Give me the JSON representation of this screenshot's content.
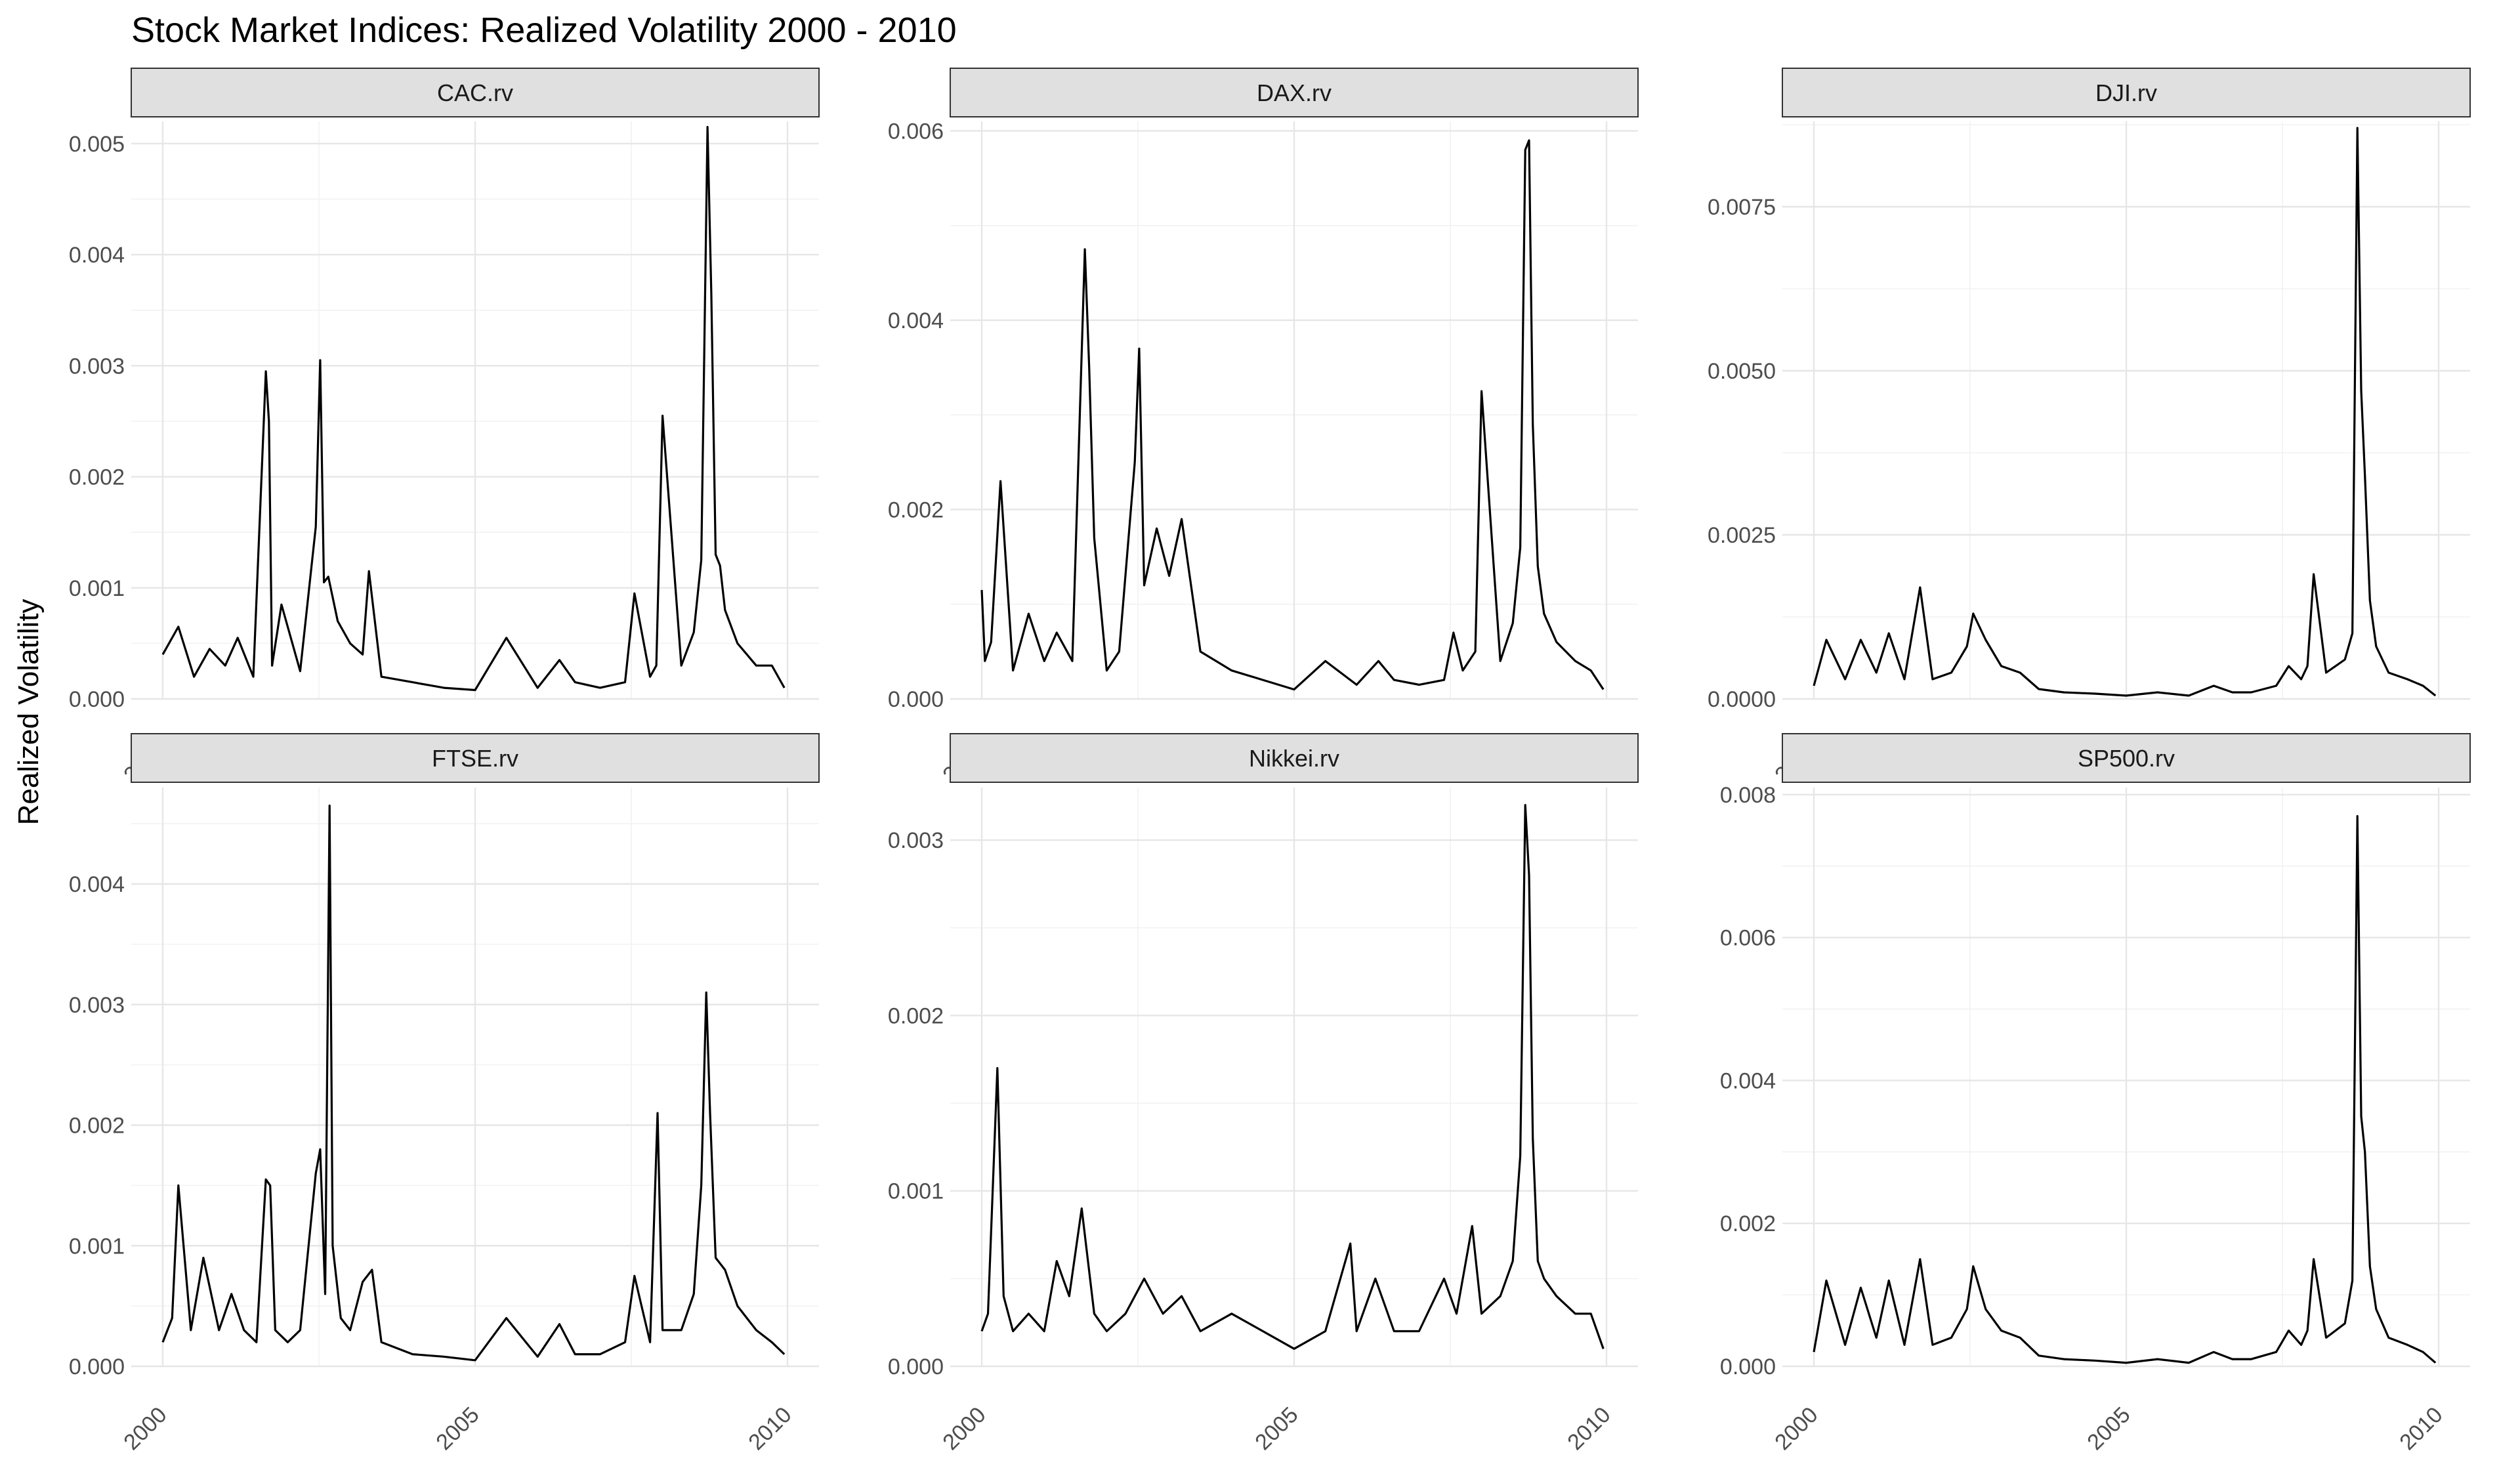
{
  "chart_data": {
    "type": "line",
    "title": "Stock Market Indices: Realized Volatility 2000 - 2010",
    "ylabel": "Realized Volatility",
    "xlabel": "",
    "grid": true,
    "x_range": [
      2000,
      2010
    ],
    "x_ticks": [
      "2000",
      "2005",
      "2010"
    ],
    "panels": [
      {
        "name": "CAC.rv",
        "ylim": [
          0,
          0.0052
        ],
        "y_ticks": [
          "0.000",
          "0.001",
          "0.002",
          "0.003",
          "0.004",
          "0.005"
        ],
        "x": [
          2000.0,
          2000.25,
          2000.5,
          2000.75,
          2001.0,
          2001.2,
          2001.45,
          2001.65,
          2001.7,
          2001.75,
          2001.9,
          2002.2,
          2002.45,
          2002.52,
          2002.58,
          2002.65,
          2002.8,
          2003.0,
          2003.2,
          2003.3,
          2003.5,
          2004.0,
          2004.5,
          2005.0,
          2005.5,
          2006.0,
          2006.35,
          2006.6,
          2007.0,
          2007.4,
          2007.55,
          2007.8,
          2007.9,
          2008.0,
          2008.3,
          2008.5,
          2008.62,
          2008.72,
          2008.78,
          2008.85,
          2008.92,
          2009.0,
          2009.2,
          2009.5,
          2009.75,
          2009.95
        ],
        "y": [
          0.0004,
          0.00065,
          0.0002,
          0.00045,
          0.0003,
          0.00055,
          0.0002,
          0.00295,
          0.0025,
          0.0003,
          0.00085,
          0.00025,
          0.00155,
          0.00305,
          0.00105,
          0.0011,
          0.0007,
          0.0005,
          0.0004,
          0.00115,
          0.0002,
          0.00015,
          0.0001,
          8e-05,
          0.00055,
          0.0001,
          0.00035,
          0.00015,
          0.0001,
          0.00015,
          0.00095,
          0.0002,
          0.0003,
          0.00255,
          0.0003,
          0.0006,
          0.00125,
          0.00515,
          0.00365,
          0.0013,
          0.0012,
          0.0008,
          0.0005,
          0.0003,
          0.0003,
          0.0001
        ]
      },
      {
        "name": "DAX.rv",
        "ylim": [
          0,
          0.0061
        ],
        "y_ticks": [
          "0.000",
          "0.002",
          "0.004",
          "0.006"
        ],
        "x": [
          2000.0,
          2000.05,
          2000.15,
          2000.3,
          2000.5,
          2000.75,
          2001.0,
          2001.2,
          2001.45,
          2001.65,
          2001.72,
          2001.8,
          2002.0,
          2002.2,
          2002.45,
          2002.52,
          2002.6,
          2002.8,
          2003.0,
          2003.2,
          2003.5,
          2004.0,
          2004.5,
          2005.0,
          2005.5,
          2006.0,
          2006.35,
          2006.6,
          2007.0,
          2007.4,
          2007.55,
          2007.7,
          2007.9,
          2008.0,
          2008.3,
          2008.5,
          2008.62,
          2008.7,
          2008.76,
          2008.82,
          2008.9,
          2009.0,
          2009.2,
          2009.5,
          2009.75,
          2009.95
        ],
        "y": [
          0.00115,
          0.0004,
          0.0006,
          0.0023,
          0.0003,
          0.0009,
          0.0004,
          0.0007,
          0.0004,
          0.00475,
          0.0035,
          0.0017,
          0.0003,
          0.0005,
          0.0025,
          0.0037,
          0.0012,
          0.0018,
          0.0013,
          0.0019,
          0.0005,
          0.0003,
          0.0002,
          0.0001,
          0.0004,
          0.00015,
          0.0004,
          0.0002,
          0.00015,
          0.0002,
          0.0007,
          0.0003,
          0.0005,
          0.00325,
          0.0004,
          0.0008,
          0.0016,
          0.0058,
          0.0059,
          0.0029,
          0.0014,
          0.0009,
          0.0006,
          0.0004,
          0.0003,
          0.0001
        ]
      },
      {
        "name": "DJI.rv",
        "ylim": [
          0,
          0.0088
        ],
        "y_ticks": [
          "0.0000",
          "0.0025",
          "0.0050",
          "0.0075"
        ],
        "x": [
          2000.0,
          2000.2,
          2000.5,
          2000.75,
          2001.0,
          2001.2,
          2001.45,
          2001.7,
          2001.9,
          2002.2,
          2002.45,
          2002.55,
          2002.75,
          2003.0,
          2003.3,
          2003.6,
          2004.0,
          2004.5,
          2005.0,
          2005.5,
          2006.0,
          2006.4,
          2006.7,
          2007.0,
          2007.4,
          2007.6,
          2007.8,
          2007.9,
          2008.0,
          2008.2,
          2008.5,
          2008.62,
          2008.7,
          2008.76,
          2008.82,
          2008.9,
          2009.0,
          2009.2,
          2009.5,
          2009.75,
          2009.95
        ],
        "y": [
          0.0002,
          0.0009,
          0.0003,
          0.0009,
          0.0004,
          0.001,
          0.0003,
          0.0017,
          0.0003,
          0.0004,
          0.0008,
          0.0013,
          0.0009,
          0.0005,
          0.0004,
          0.00015,
          0.0001,
          8e-05,
          5e-05,
          0.0001,
          5e-05,
          0.0002,
          0.0001,
          0.0001,
          0.0002,
          0.0005,
          0.0003,
          0.0005,
          0.0019,
          0.0004,
          0.0006,
          0.001,
          0.0087,
          0.0047,
          0.0034,
          0.0015,
          0.0008,
          0.0004,
          0.0003,
          0.0002,
          5e-05
        ]
      },
      {
        "name": "FTSE.rv",
        "ylim": [
          0,
          0.0048
        ],
        "y_ticks": [
          "0.000",
          "0.001",
          "0.002",
          "0.003",
          "0.004"
        ],
        "x": [
          2000.0,
          2000.15,
          2000.25,
          2000.45,
          2000.65,
          2000.9,
          2001.1,
          2001.3,
          2001.5,
          2001.65,
          2001.72,
          2001.8,
          2002.0,
          2002.2,
          2002.45,
          2002.52,
          2002.6,
          2002.67,
          2002.72,
          2002.85,
          2003.0,
          2003.2,
          2003.35,
          2003.5,
          2004.0,
          2004.5,
          2005.0,
          2005.5,
          2006.0,
          2006.35,
          2006.6,
          2007.0,
          2007.4,
          2007.55,
          2007.8,
          2007.92,
          2008.0,
          2008.3,
          2008.5,
          2008.62,
          2008.7,
          2008.76,
          2008.85,
          2009.0,
          2009.2,
          2009.5,
          2009.75,
          2009.95
        ],
        "y": [
          0.0002,
          0.0004,
          0.0015,
          0.0003,
          0.0009,
          0.0003,
          0.0006,
          0.0003,
          0.0002,
          0.00155,
          0.0015,
          0.0003,
          0.0002,
          0.0003,
          0.0016,
          0.0018,
          0.0006,
          0.00465,
          0.001,
          0.0004,
          0.0003,
          0.0007,
          0.0008,
          0.0002,
          0.0001,
          8e-05,
          5e-05,
          0.0004,
          8e-05,
          0.00035,
          0.0001,
          0.0001,
          0.0002,
          0.00075,
          0.0002,
          0.0021,
          0.0003,
          0.0003,
          0.0006,
          0.0015,
          0.0031,
          0.0021,
          0.0009,
          0.0008,
          0.0005,
          0.0003,
          0.0002,
          0.0001
        ]
      },
      {
        "name": "Nikkei.rv",
        "ylim": [
          0,
          0.0033
        ],
        "y_ticks": [
          "0.000",
          "0.001",
          "0.002",
          "0.003"
        ],
        "x": [
          2000.0,
          2000.1,
          2000.25,
          2000.35,
          2000.5,
          2000.75,
          2001.0,
          2001.2,
          2001.4,
          2001.6,
          2001.8,
          2002.0,
          2002.3,
          2002.6,
          2002.9,
          2003.2,
          2003.5,
          2004.0,
          2004.5,
          2005.0,
          2005.5,
          2005.9,
          2006.0,
          2006.3,
          2006.6,
          2007.0,
          2007.4,
          2007.6,
          2007.85,
          2008.0,
          2008.3,
          2008.5,
          2008.62,
          2008.7,
          2008.76,
          2008.82,
          2008.9,
          2009.0,
          2009.2,
          2009.5,
          2009.75,
          2009.95
        ],
        "y": [
          0.0002,
          0.0003,
          0.0017,
          0.0004,
          0.0002,
          0.0003,
          0.0002,
          0.0006,
          0.0004,
          0.0009,
          0.0003,
          0.0002,
          0.0003,
          0.0005,
          0.0003,
          0.0004,
          0.0002,
          0.0003,
          0.0002,
          0.0001,
          0.0002,
          0.0007,
          0.0002,
          0.0005,
          0.0002,
          0.0002,
          0.0005,
          0.0003,
          0.0008,
          0.0003,
          0.0004,
          0.0006,
          0.0012,
          0.0032,
          0.0028,
          0.0013,
          0.0006,
          0.0005,
          0.0004,
          0.0003,
          0.0003,
          0.0001
        ]
      },
      {
        "name": "SP500.rv",
        "ylim": [
          0,
          0.0081
        ],
        "y_ticks": [
          "0.000",
          "0.002",
          "0.004",
          "0.006",
          "0.008"
        ],
        "x": [
          2000.0,
          2000.2,
          2000.5,
          2000.75,
          2001.0,
          2001.2,
          2001.45,
          2001.7,
          2001.9,
          2002.2,
          2002.45,
          2002.55,
          2002.75,
          2003.0,
          2003.3,
          2003.6,
          2004.0,
          2004.5,
          2005.0,
          2005.5,
          2006.0,
          2006.4,
          2006.7,
          2007.0,
          2007.4,
          2007.6,
          2007.8,
          2007.9,
          2008.0,
          2008.2,
          2008.5,
          2008.62,
          2008.7,
          2008.76,
          2008.82,
          2008.9,
          2009.0,
          2009.2,
          2009.5,
          2009.75,
          2009.95
        ],
        "y": [
          0.0002,
          0.0012,
          0.0003,
          0.0011,
          0.0004,
          0.0012,
          0.0003,
          0.0015,
          0.0003,
          0.0004,
          0.0008,
          0.0014,
          0.0008,
          0.0005,
          0.0004,
          0.00015,
          0.0001,
          8e-05,
          5e-05,
          0.0001,
          5e-05,
          0.0002,
          0.0001,
          0.0001,
          0.0002,
          0.0005,
          0.0003,
          0.0005,
          0.0015,
          0.0004,
          0.0006,
          0.0012,
          0.0077,
          0.0035,
          0.003,
          0.0014,
          0.0008,
          0.0004,
          0.0003,
          0.0002,
          5e-05
        ]
      }
    ]
  }
}
